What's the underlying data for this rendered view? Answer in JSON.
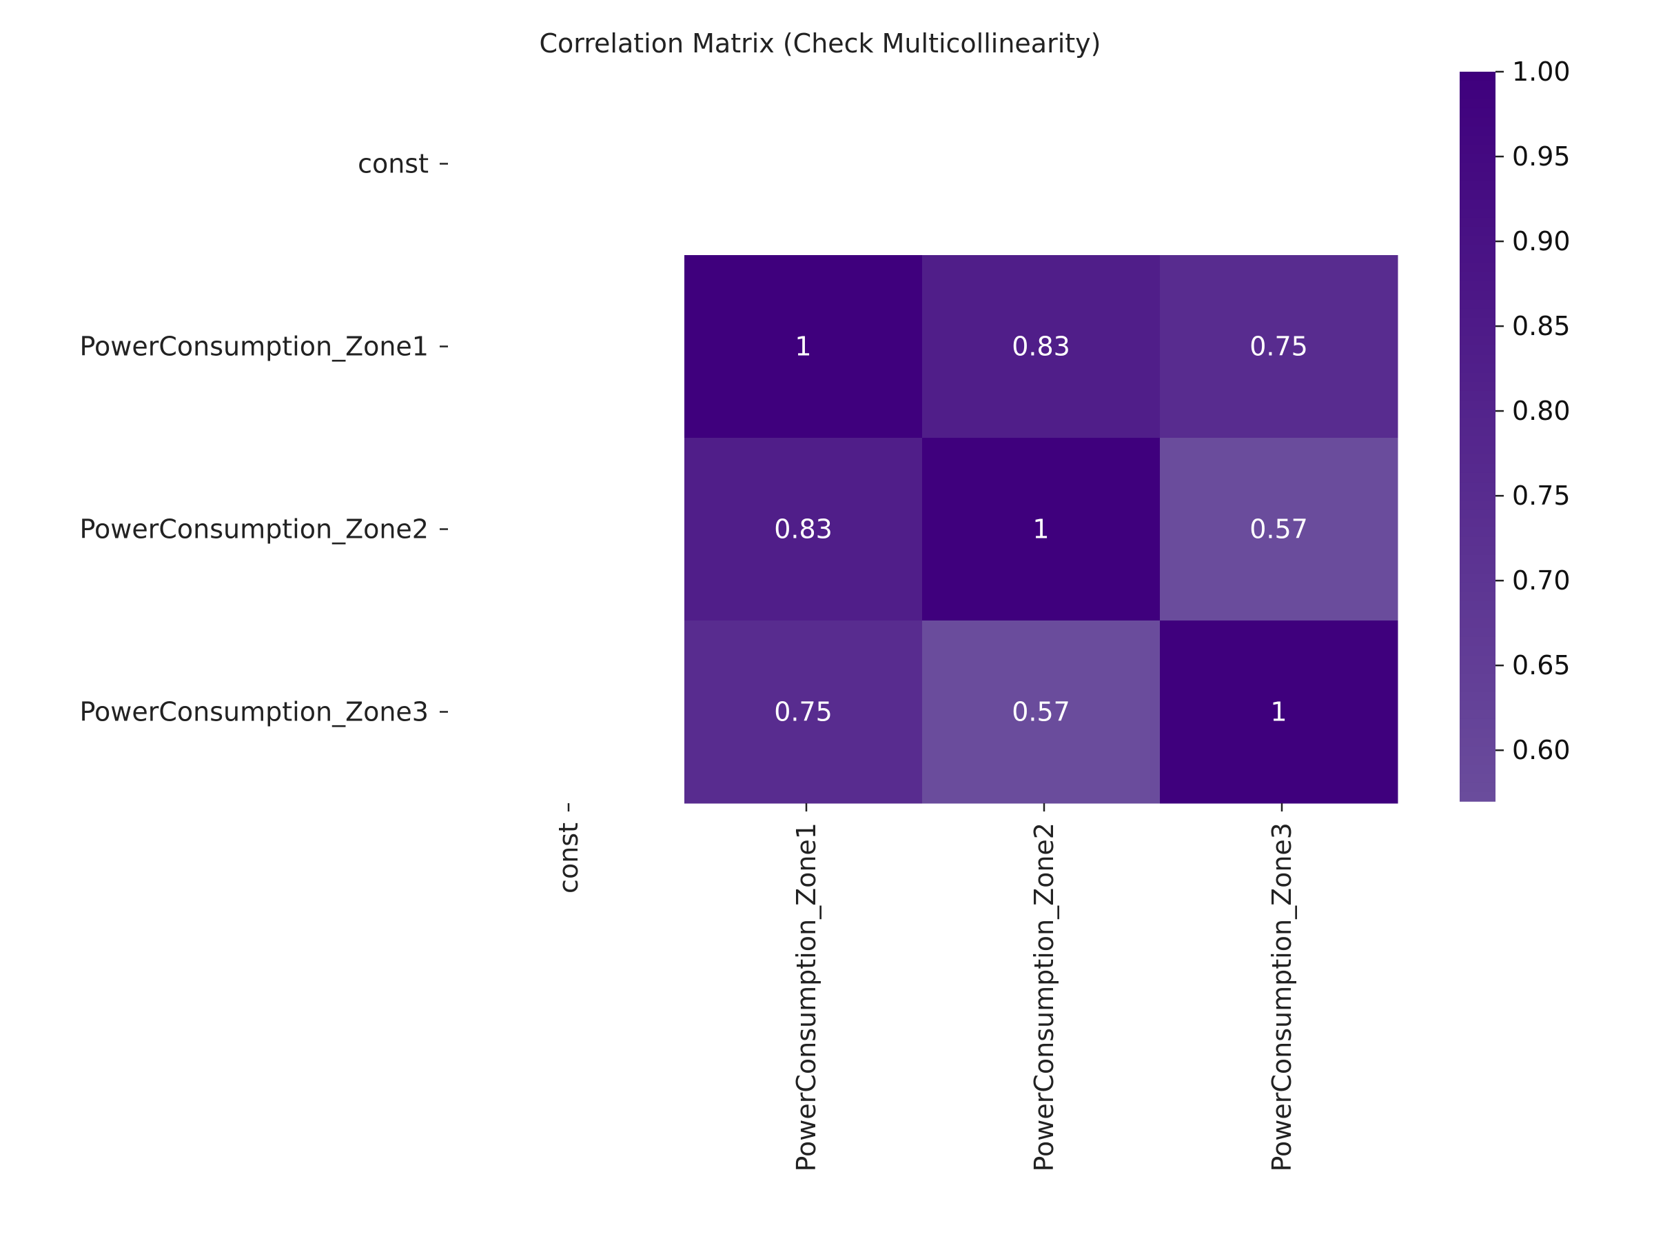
{
  "chart_data": {
    "type": "heatmap",
    "title": "Correlation Matrix (Check Multicollinearity)",
    "x_labels": [
      "const",
      "PowerConsumption_Zone1",
      "PowerConsumption_Zone2",
      "PowerConsumption_Zone3"
    ],
    "y_labels": [
      "const",
      "PowerConsumption_Zone1",
      "PowerConsumption_Zone2",
      "PowerConsumption_Zone3"
    ],
    "values": [
      [
        null,
        null,
        null,
        null
      ],
      [
        null,
        1,
        0.83,
        0.75
      ],
      [
        null,
        0.83,
        1,
        0.57
      ],
      [
        null,
        0.75,
        0.57,
        1
      ]
    ],
    "cell_labels": [
      [
        null,
        null,
        null,
        null
      ],
      [
        null,
        "1",
        "0.83",
        "0.75"
      ],
      [
        null,
        "0.83",
        "1",
        "0.57"
      ],
      [
        null,
        "0.75",
        "0.57",
        "1"
      ]
    ],
    "colorbar": {
      "min": 0.57,
      "max": 1.0,
      "ticks": [
        0.6,
        0.65,
        0.7,
        0.75,
        0.8,
        0.85,
        0.9,
        0.95,
        1.0
      ],
      "tick_labels": [
        "0.60",
        "0.65",
        "0.70",
        "0.75",
        "0.80",
        "0.85",
        "0.90",
        "0.95",
        "1.00"
      ],
      "color_low": "#6a4c9c",
      "color_high": "#3f007d"
    },
    "colormap": "Purples",
    "grid": false
  }
}
